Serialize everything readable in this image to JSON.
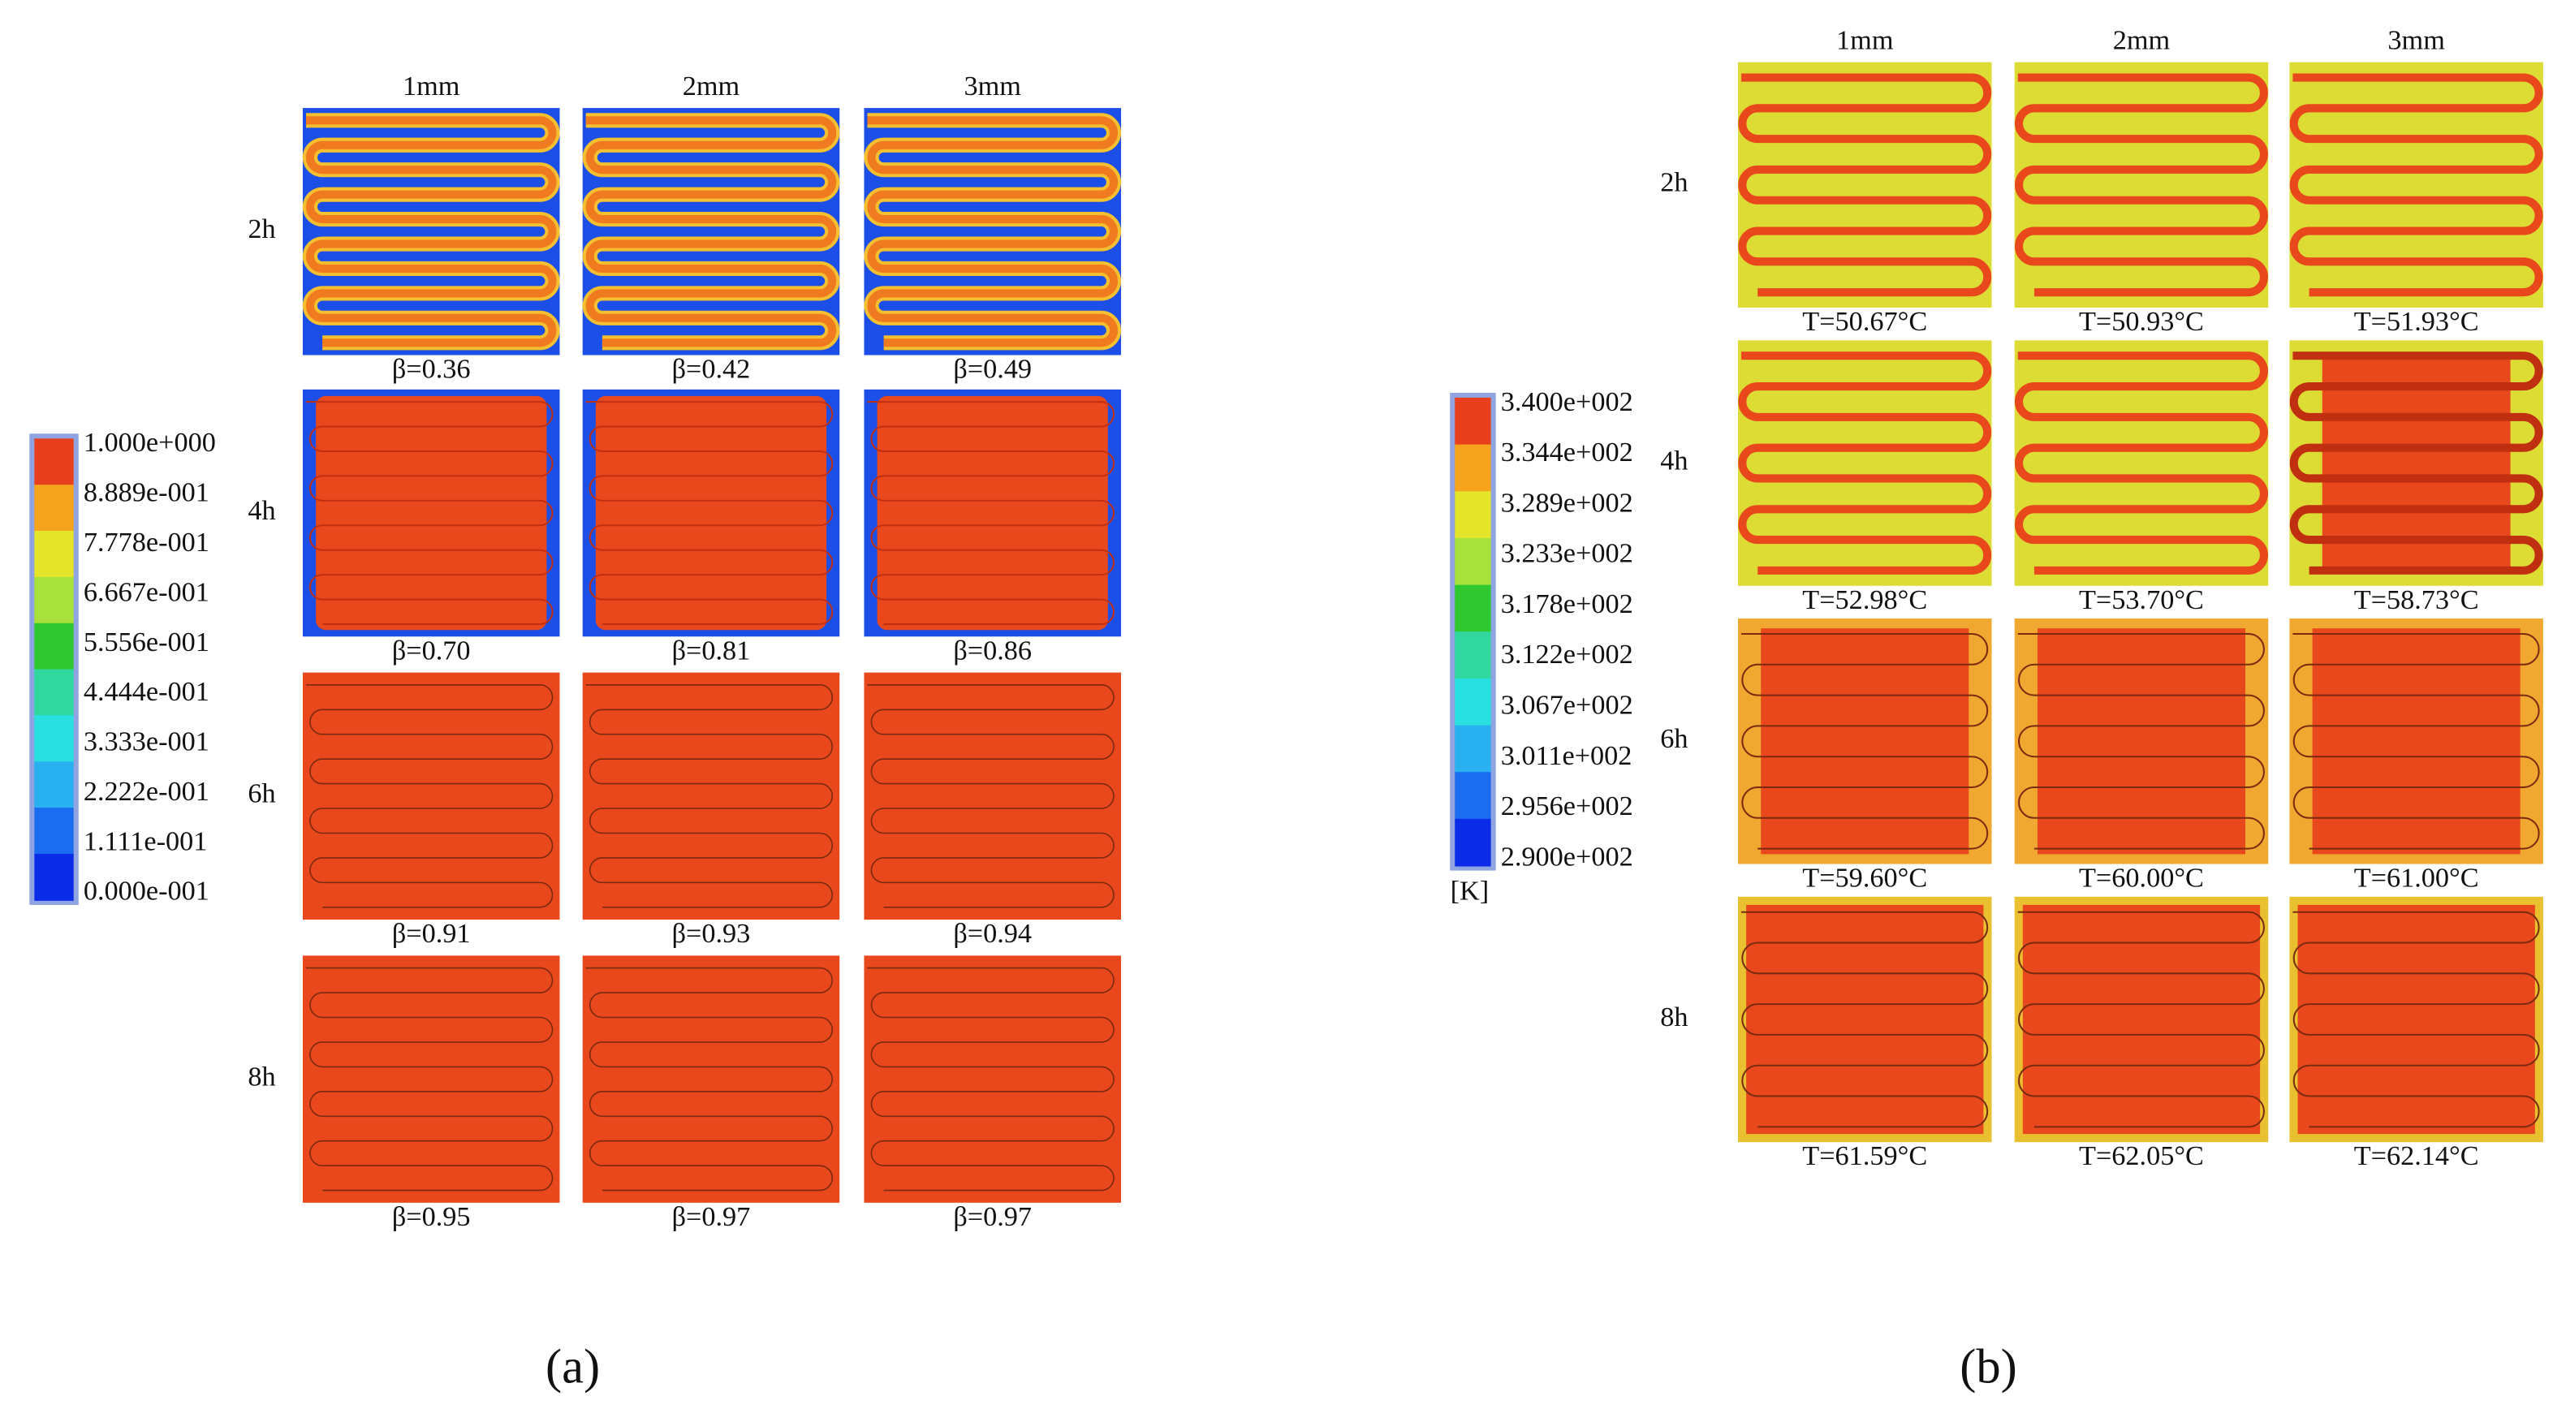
{
  "panel_a": {
    "columns": [
      "1mm",
      "2mm",
      "3mm"
    ],
    "rows": [
      "2h",
      "4h",
      "6h",
      "8h"
    ],
    "labels": [
      [
        "β=0.36",
        "β=0.42",
        "β=0.49"
      ],
      [
        "β=0.70",
        "β=0.81",
        "β=0.86"
      ],
      [
        "β=0.91",
        "β=0.93",
        "β=0.94"
      ],
      [
        "β=0.95",
        "β=0.97",
        "β=0.97"
      ]
    ],
    "legend": [
      "1.000e+000",
      "8.889e-001",
      "7.778e-001",
      "6.667e-001",
      "5.556e-001",
      "4.444e-001",
      "3.333e-001",
      "2.222e-001",
      "1.111e-001",
      "0.000e-001"
    ],
    "caption": "(a)"
  },
  "panel_b": {
    "columns": [
      "1mm",
      "2mm",
      "3mm"
    ],
    "rows": [
      "2h",
      "4h",
      "6h",
      "8h"
    ],
    "labels": [
      [
        "T=50.67°C",
        "T=50.93°C",
        "T=51.93°C"
      ],
      [
        "T=52.98°C",
        "T=53.70°C",
        "T=58.73°C"
      ],
      [
        "T=59.60°C",
        "T=60.00°C",
        "T=61.00°C"
      ],
      [
        "T=61.59°C",
        "T=62.05°C",
        "T=62.14°C"
      ]
    ],
    "legend": [
      "3.400e+002",
      "3.344e+002",
      "3.289e+002",
      "3.233e+002",
      "3.178e+002",
      "3.122e+002",
      "3.067e+002",
      "3.011e+002",
      "2.956e+002",
      "2.900e+002"
    ],
    "unit": "[K]",
    "caption": "(b)"
  },
  "legend_colors": [
    "#e8401c",
    "#f5a41c",
    "#e4e42a",
    "#a8e03c",
    "#30c830",
    "#30d8a0",
    "#28e0e0",
    "#28b0f0",
    "#1c6cf0",
    "#0a2ce8"
  ]
}
